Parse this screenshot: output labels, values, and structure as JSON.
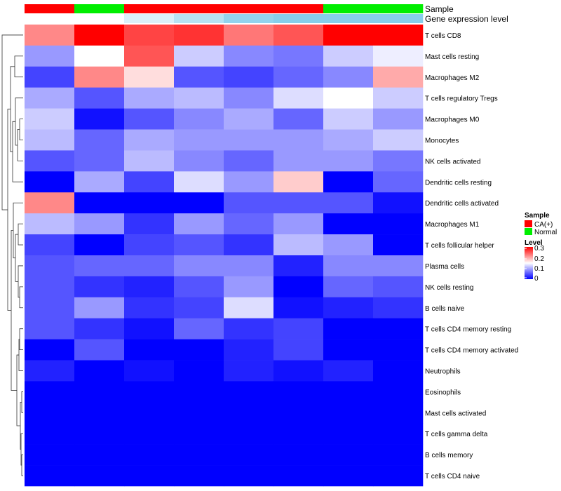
{
  "chart_data": {
    "type": "heatmap",
    "title": "",
    "annotation_rows": [
      {
        "name": "Sample",
        "values": [
          "CA(+)",
          "Normal",
          "CA(+)",
          "CA(+)",
          "CA(+)",
          "CA(+)",
          "Normal",
          "Normal"
        ]
      },
      {
        "name": "Gene expression level",
        "values": [
          0,
          0,
          0.3,
          0.6,
          0.9,
          1.0,
          1.0,
          1.0
        ]
      }
    ],
    "sample_colors": {
      "CA(+)": "#ff0000",
      "Normal": "#00ee00"
    },
    "annotation_gradient": [
      "#ffffff",
      "#87ceeb"
    ],
    "rows": [
      "T cells CD8",
      "Mast cells resting",
      "Macrophages M2",
      "T cells regulatory  Tregs",
      "Macrophages M0",
      "Monocytes",
      "NK cells activated",
      "Dendritic cells resting",
      "Dendritic cells activated",
      "Macrophages M1",
      "T cells follicular helper",
      "Plasma cells",
      "NK cells resting",
      "B cells naive",
      "T cells CD4 memory resting",
      "T cells CD4 memory activated",
      "Neutrophils",
      "Eosinophils",
      "Mast cells activated",
      "T cells gamma delta",
      "B cells memory",
      "T cells CD4 naive"
    ],
    "values": [
      [
        0.22,
        0.3,
        0.26,
        0.27,
        0.23,
        0.25,
        0.3,
        0.3
      ],
      [
        0.09,
        0.15,
        0.25,
        0.12,
        0.08,
        0.07,
        0.12,
        0.14
      ],
      [
        0.04,
        0.22,
        0.17,
        0.05,
        0.04,
        0.06,
        0.08,
        0.2
      ],
      [
        0.1,
        0.05,
        0.1,
        0.11,
        0.08,
        0.13,
        0.15,
        0.12
      ],
      [
        0.12,
        0.01,
        0.05,
        0.08,
        0.1,
        0.06,
        0.12,
        0.09
      ],
      [
        0.11,
        0.06,
        0.1,
        0.09,
        0.09,
        0.09,
        0.1,
        0.12
      ],
      [
        0.05,
        0.06,
        0.11,
        0.08,
        0.06,
        0.09,
        0.09,
        0.07
      ],
      [
        0.0,
        0.1,
        0.04,
        0.13,
        0.09,
        0.18,
        0.0,
        0.06
      ],
      [
        0.22,
        0.0,
        0.0,
        0.0,
        0.05,
        0.05,
        0.05,
        0.01
      ],
      [
        0.11,
        0.09,
        0.03,
        0.09,
        0.06,
        0.09,
        0.0,
        0.0
      ],
      [
        0.04,
        0.0,
        0.04,
        0.05,
        0.03,
        0.11,
        0.09,
        0.0
      ],
      [
        0.05,
        0.06,
        0.06,
        0.08,
        0.08,
        0.02,
        0.08,
        0.08
      ],
      [
        0.05,
        0.03,
        0.02,
        0.05,
        0.09,
        0.0,
        0.06,
        0.05
      ],
      [
        0.05,
        0.09,
        0.03,
        0.04,
        0.13,
        0.01,
        0.02,
        0.03
      ],
      [
        0.05,
        0.03,
        0.01,
        0.06,
        0.03,
        0.04,
        0.0,
        0.0
      ],
      [
        0.0,
        0.05,
        0.0,
        0.0,
        0.02,
        0.04,
        0.0,
        0.0
      ],
      [
        0.02,
        0.0,
        0.01,
        0.0,
        0.02,
        0.01,
        0.02,
        0.0
      ],
      [
        0.0,
        0.0,
        0.0,
        0.0,
        0.0,
        0.0,
        0.0,
        0.0
      ],
      [
        0.0,
        0.0,
        0.0,
        0.0,
        0.0,
        0.0,
        0.0,
        0.0
      ],
      [
        0.0,
        0.0,
        0.0,
        0.0,
        0.0,
        0.0,
        0.0,
        0.0
      ],
      [
        0.0,
        0.0,
        0.0,
        0.0,
        0.0,
        0.0,
        0.0,
        0.0
      ],
      [
        0.0,
        0.0,
        0.0,
        0.0,
        0.0,
        0.0,
        0.0,
        0.0
      ]
    ],
    "color_scale": {
      "range": [
        0,
        0.3
      ],
      "colors": [
        "#0000ff",
        "#ffffff",
        "#ff0000"
      ]
    },
    "legend": {
      "position": "right",
      "sample_title": "Sample",
      "sample_entries": [
        "CA(+)",
        "Normal"
      ],
      "level_title": "Level",
      "level_ticks": [
        "0.3",
        "0.2",
        "0.1",
        "0"
      ]
    },
    "row_dendrogram": true,
    "column_dendrogram": false
  }
}
